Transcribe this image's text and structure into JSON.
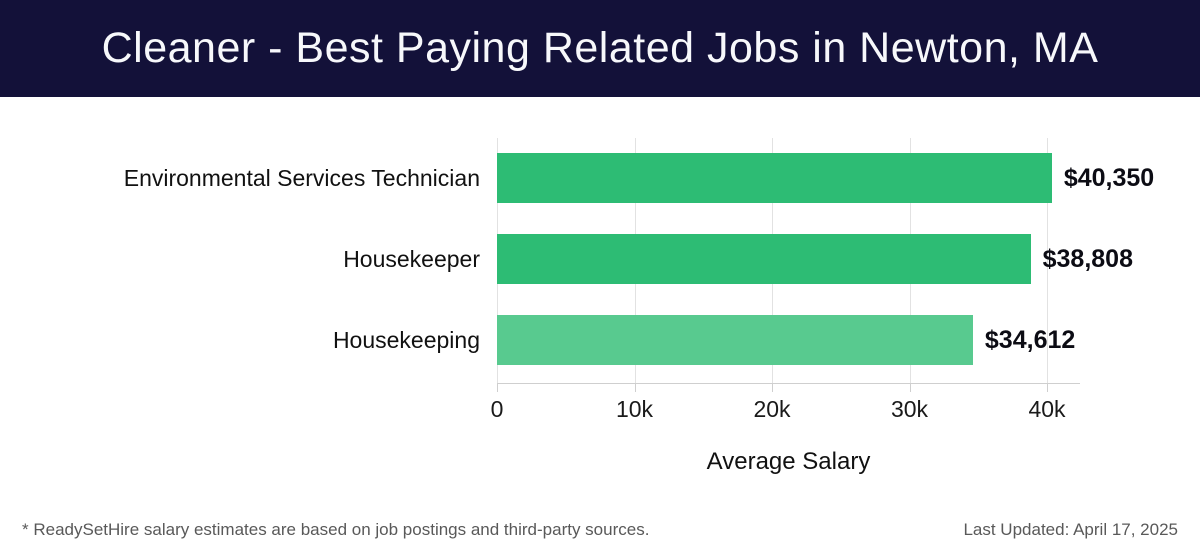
{
  "header": {
    "title": "Cleaner - Best Paying Related Jobs in Newton, MA",
    "bg_color": "#131139",
    "text_color": "#f7f8fb"
  },
  "chart_data": {
    "type": "bar",
    "orientation": "horizontal",
    "title": "Cleaner - Best Paying Related Jobs in Newton, MA",
    "categories": [
      "Environmental Services Technician",
      "Housekeeper",
      "Housekeeping"
    ],
    "values": [
      40350,
      38808,
      34612
    ],
    "value_labels": [
      "$40,350",
      "$38,808",
      "$34,612"
    ],
    "bar_colors": [
      "#2dbc74",
      "#2dbc74",
      "#58ca8f"
    ],
    "xlabel": "Average Salary",
    "ylabel": "",
    "xlim": [
      0,
      42400
    ],
    "xticks": [
      0,
      10000,
      20000,
      30000,
      40000
    ],
    "xtick_labels": [
      "0",
      "10k",
      "20k",
      "30k",
      "40k"
    ],
    "grid": "vertical",
    "legend": "none",
    "grid_color": "#e2e2e2",
    "axis_color": "#cfcfcf"
  },
  "footer": {
    "note": "* ReadySetHire salary estimates are based on job postings and third-party sources.",
    "last_updated": "Last Updated: April 17, 2025"
  }
}
